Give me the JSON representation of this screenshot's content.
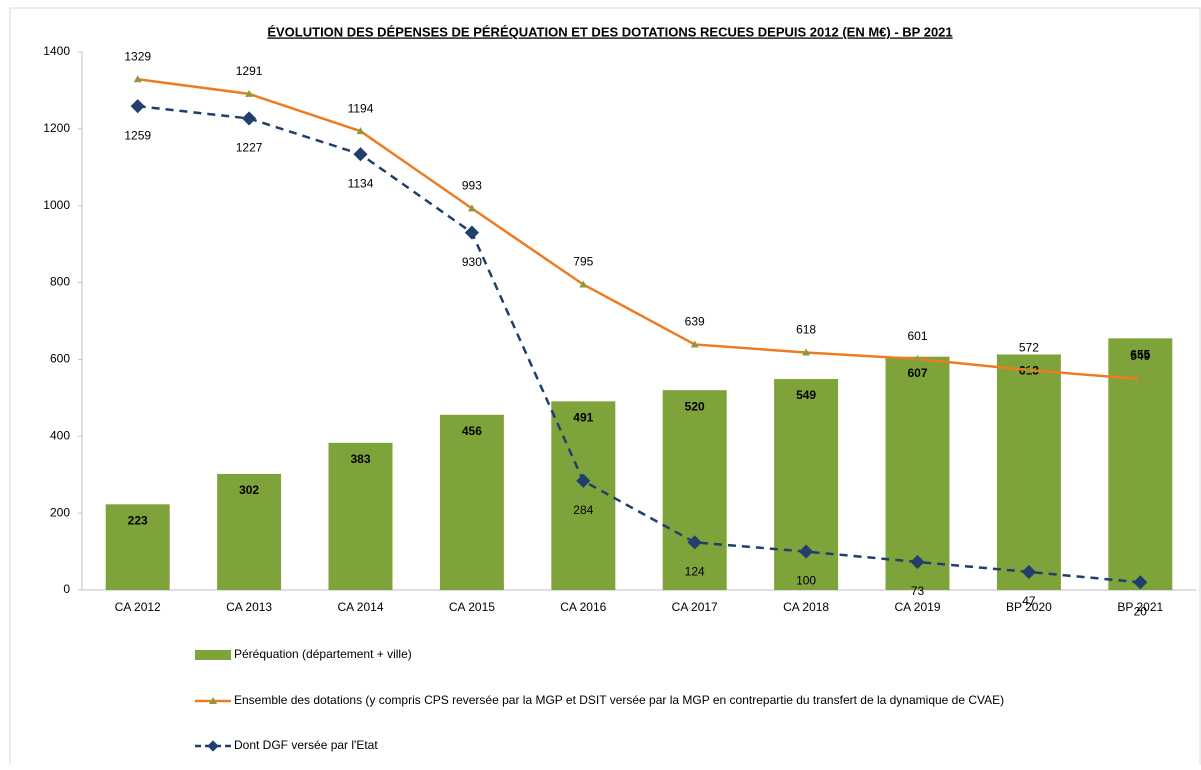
{
  "chart_data": {
    "type": "bar",
    "title": "ÉVOLUTION DES DÉPENSES DE PÉRÉQUATION ET DES DOTATIONS RECUES DEPUIS 2012 (EN M€) - BP 2021",
    "categories": [
      "CA 2012",
      "CA 2013",
      "CA 2014",
      "CA 2015",
      "CA 2016",
      "CA 2017",
      "CA 2018",
      "CA 2019",
      "BP 2020",
      "BP 2021"
    ],
    "series": [
      {
        "name": "Péréquation (département + ville)",
        "type": "bar",
        "color": "#7fa33b",
        "values": [
          223,
          302,
          383,
          456,
          491,
          520,
          549,
          607,
          613,
          655
        ]
      },
      {
        "name": "Ensemble des dotations (y compris CPS reversée par la MGP et DSIT versée par la MGP en contrepartie du transfert de la dynamique de CVAE)",
        "type": "line",
        "color": "#ec7c22",
        "marker_color": "#8c9a3c",
        "values": [
          1329,
          1291,
          1194,
          993,
          795,
          639,
          618,
          601,
          572,
          549
        ]
      },
      {
        "name": "Dont DGF versée par l'Etat",
        "type": "line",
        "dashed": true,
        "color": "#203f6c",
        "values": [
          1259,
          1227,
          1134,
          930,
          284,
          124,
          100,
          73,
          47,
          20
        ]
      }
    ],
    "ylim": [
      0,
      1400
    ],
    "yticks": [
      0,
      200,
      400,
      600,
      800,
      1000,
      1200,
      1400
    ]
  }
}
